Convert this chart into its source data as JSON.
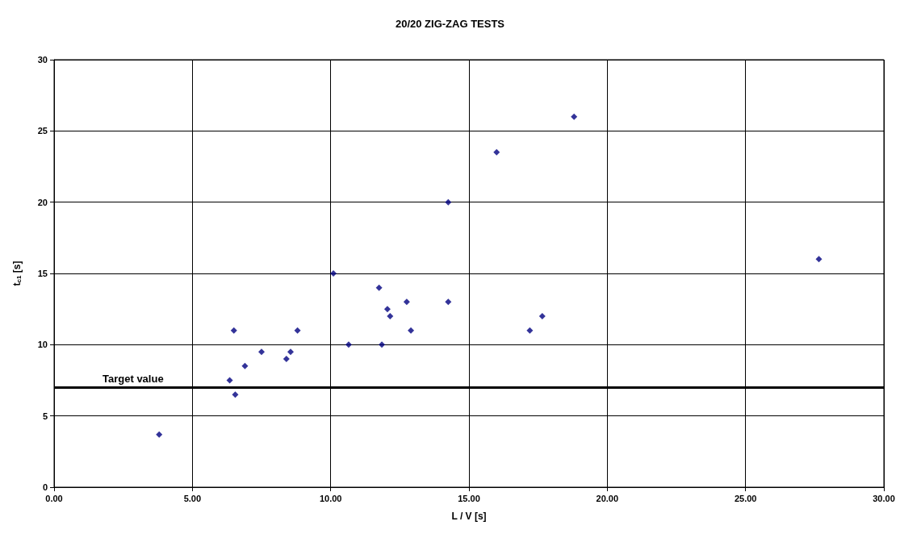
{
  "chart_data": {
    "type": "scatter",
    "title": "20/20 ZIG-ZAG TESTS",
    "xlabel": "L / V [s]",
    "ylabel": "t$_{c1}$ [s]",
    "x": [
      3.8,
      6.35,
      6.5,
      6.55,
      6.9,
      7.5,
      8.4,
      8.55,
      8.8,
      10.1,
      10.65,
      11.75,
      11.85,
      12.05,
      12.15,
      12.75,
      12.9,
      14.25,
      14.25,
      16.0,
      17.2,
      17.65,
      18.8,
      27.65
    ],
    "series": [
      {
        "color": "#000080",
        "values": [
          3.7,
          7.5,
          11,
          6.5,
          8.5,
          9.5,
          9,
          9.5,
          11,
          15,
          10,
          14,
          10,
          12.5,
          12,
          13,
          11,
          20,
          13,
          23.5,
          11,
          12,
          26,
          16
        ]
      }
    ],
    "xlim": [
      0,
      30
    ],
    "xticks": [
      {
        "value": 0,
        "label": "0.00"
      },
      {
        "value": 5,
        "label": "5.00"
      },
      {
        "value": 10,
        "label": "10.00"
      },
      {
        "value": 15,
        "label": "15.00"
      },
      {
        "value": 20,
        "label": "20.00"
      },
      {
        "value": 25,
        "label": "25.00"
      },
      {
        "value": 30,
        "label": "30.00"
      }
    ],
    "ylim": [
      0,
      30
    ],
    "yticks": [
      0,
      5,
      10,
      15,
      20,
      25,
      30
    ],
    "ref_lines": [
      {
        "axis": "y",
        "value": 7,
        "label": "Target value",
        "color": "#000000",
        "line_style": "solid"
      }
    ],
    "grid": true,
    "marker": "diamond"
  }
}
